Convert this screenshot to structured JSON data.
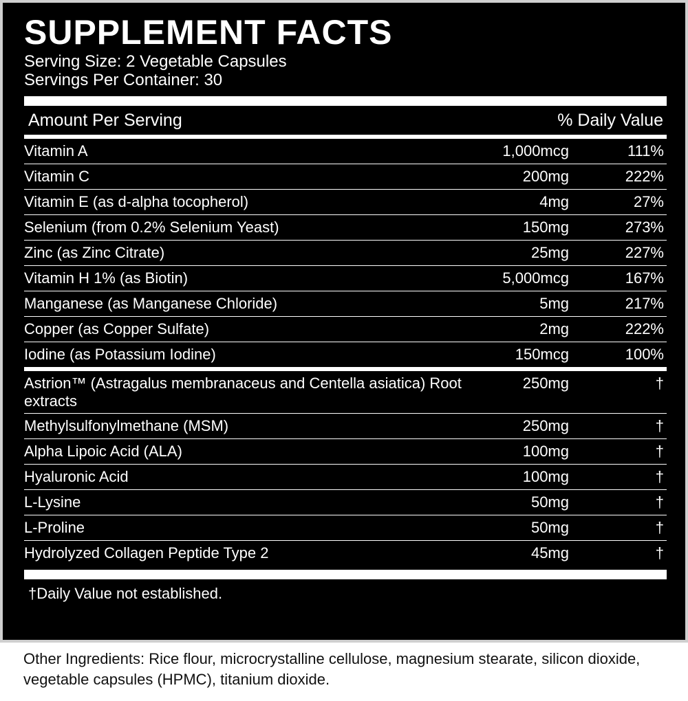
{
  "title": "SUPPLEMENT FACTS",
  "serving_size": "Serving Size: 2 Vegetable Capsules",
  "servings_per_container": "Servings Per Container: 30",
  "header": {
    "amount_per_serving": "Amount Per Serving",
    "daily_value": "% Daily Value"
  },
  "vitamins": [
    {
      "name": "Vitamin A",
      "amount": "1,000mcg",
      "dv": "111%"
    },
    {
      "name": "Vitamin C",
      "amount": "200mg",
      "dv": "222%"
    },
    {
      "name": "Vitamin E (as d-alpha tocopherol)",
      "amount": "4mg",
      "dv": "27%"
    },
    {
      "name": "Selenium (from 0.2% Selenium Yeast)",
      "amount": "150mg",
      "dv": "273%"
    },
    {
      "name": "Zinc (as Zinc Citrate)",
      "amount": "25mg",
      "dv": "227%"
    },
    {
      "name": "Vitamin H 1% (as Biotin)",
      "amount": "5,000mcg",
      "dv": "167%"
    },
    {
      "name": "Manganese (as Manganese Chloride)",
      "amount": "5mg",
      "dv": "217%"
    },
    {
      "name": "Copper (as Copper Sulfate)",
      "amount": "2mg",
      "dv": "222%"
    },
    {
      "name": "Iodine (as Potassium Iodine)",
      "amount": "150mcg",
      "dv": "100%"
    }
  ],
  "other_actives": [
    {
      "name": "Astrion™ (Astragalus membranaceus and Centella asiatica) Root extracts",
      "amount": "250mg",
      "dv": "†"
    },
    {
      "name": "Methylsulfonylmethane (MSM)",
      "amount": "250mg",
      "dv": "†"
    },
    {
      "name": "Alpha Lipoic Acid (ALA)",
      "amount": "100mg",
      "dv": "†"
    },
    {
      "name": "Hyaluronic Acid",
      "amount": "100mg",
      "dv": "†"
    },
    {
      "name": "L-Lysine",
      "amount": "50mg",
      "dv": "†"
    },
    {
      "name": "L-Proline",
      "amount": "50mg",
      "dv": "†"
    },
    {
      "name": "Hydrolyzed Collagen Peptide Type 2",
      "amount": "45mg",
      "dv": "†"
    }
  ],
  "footnote": "†Daily Value not established.",
  "other_ingredients": "Other Ingredients: Rice flour, microcrystalline cellulose, magnesium stearate, silicon dioxide, vegetable capsules (HPMC), titanium dioxide."
}
